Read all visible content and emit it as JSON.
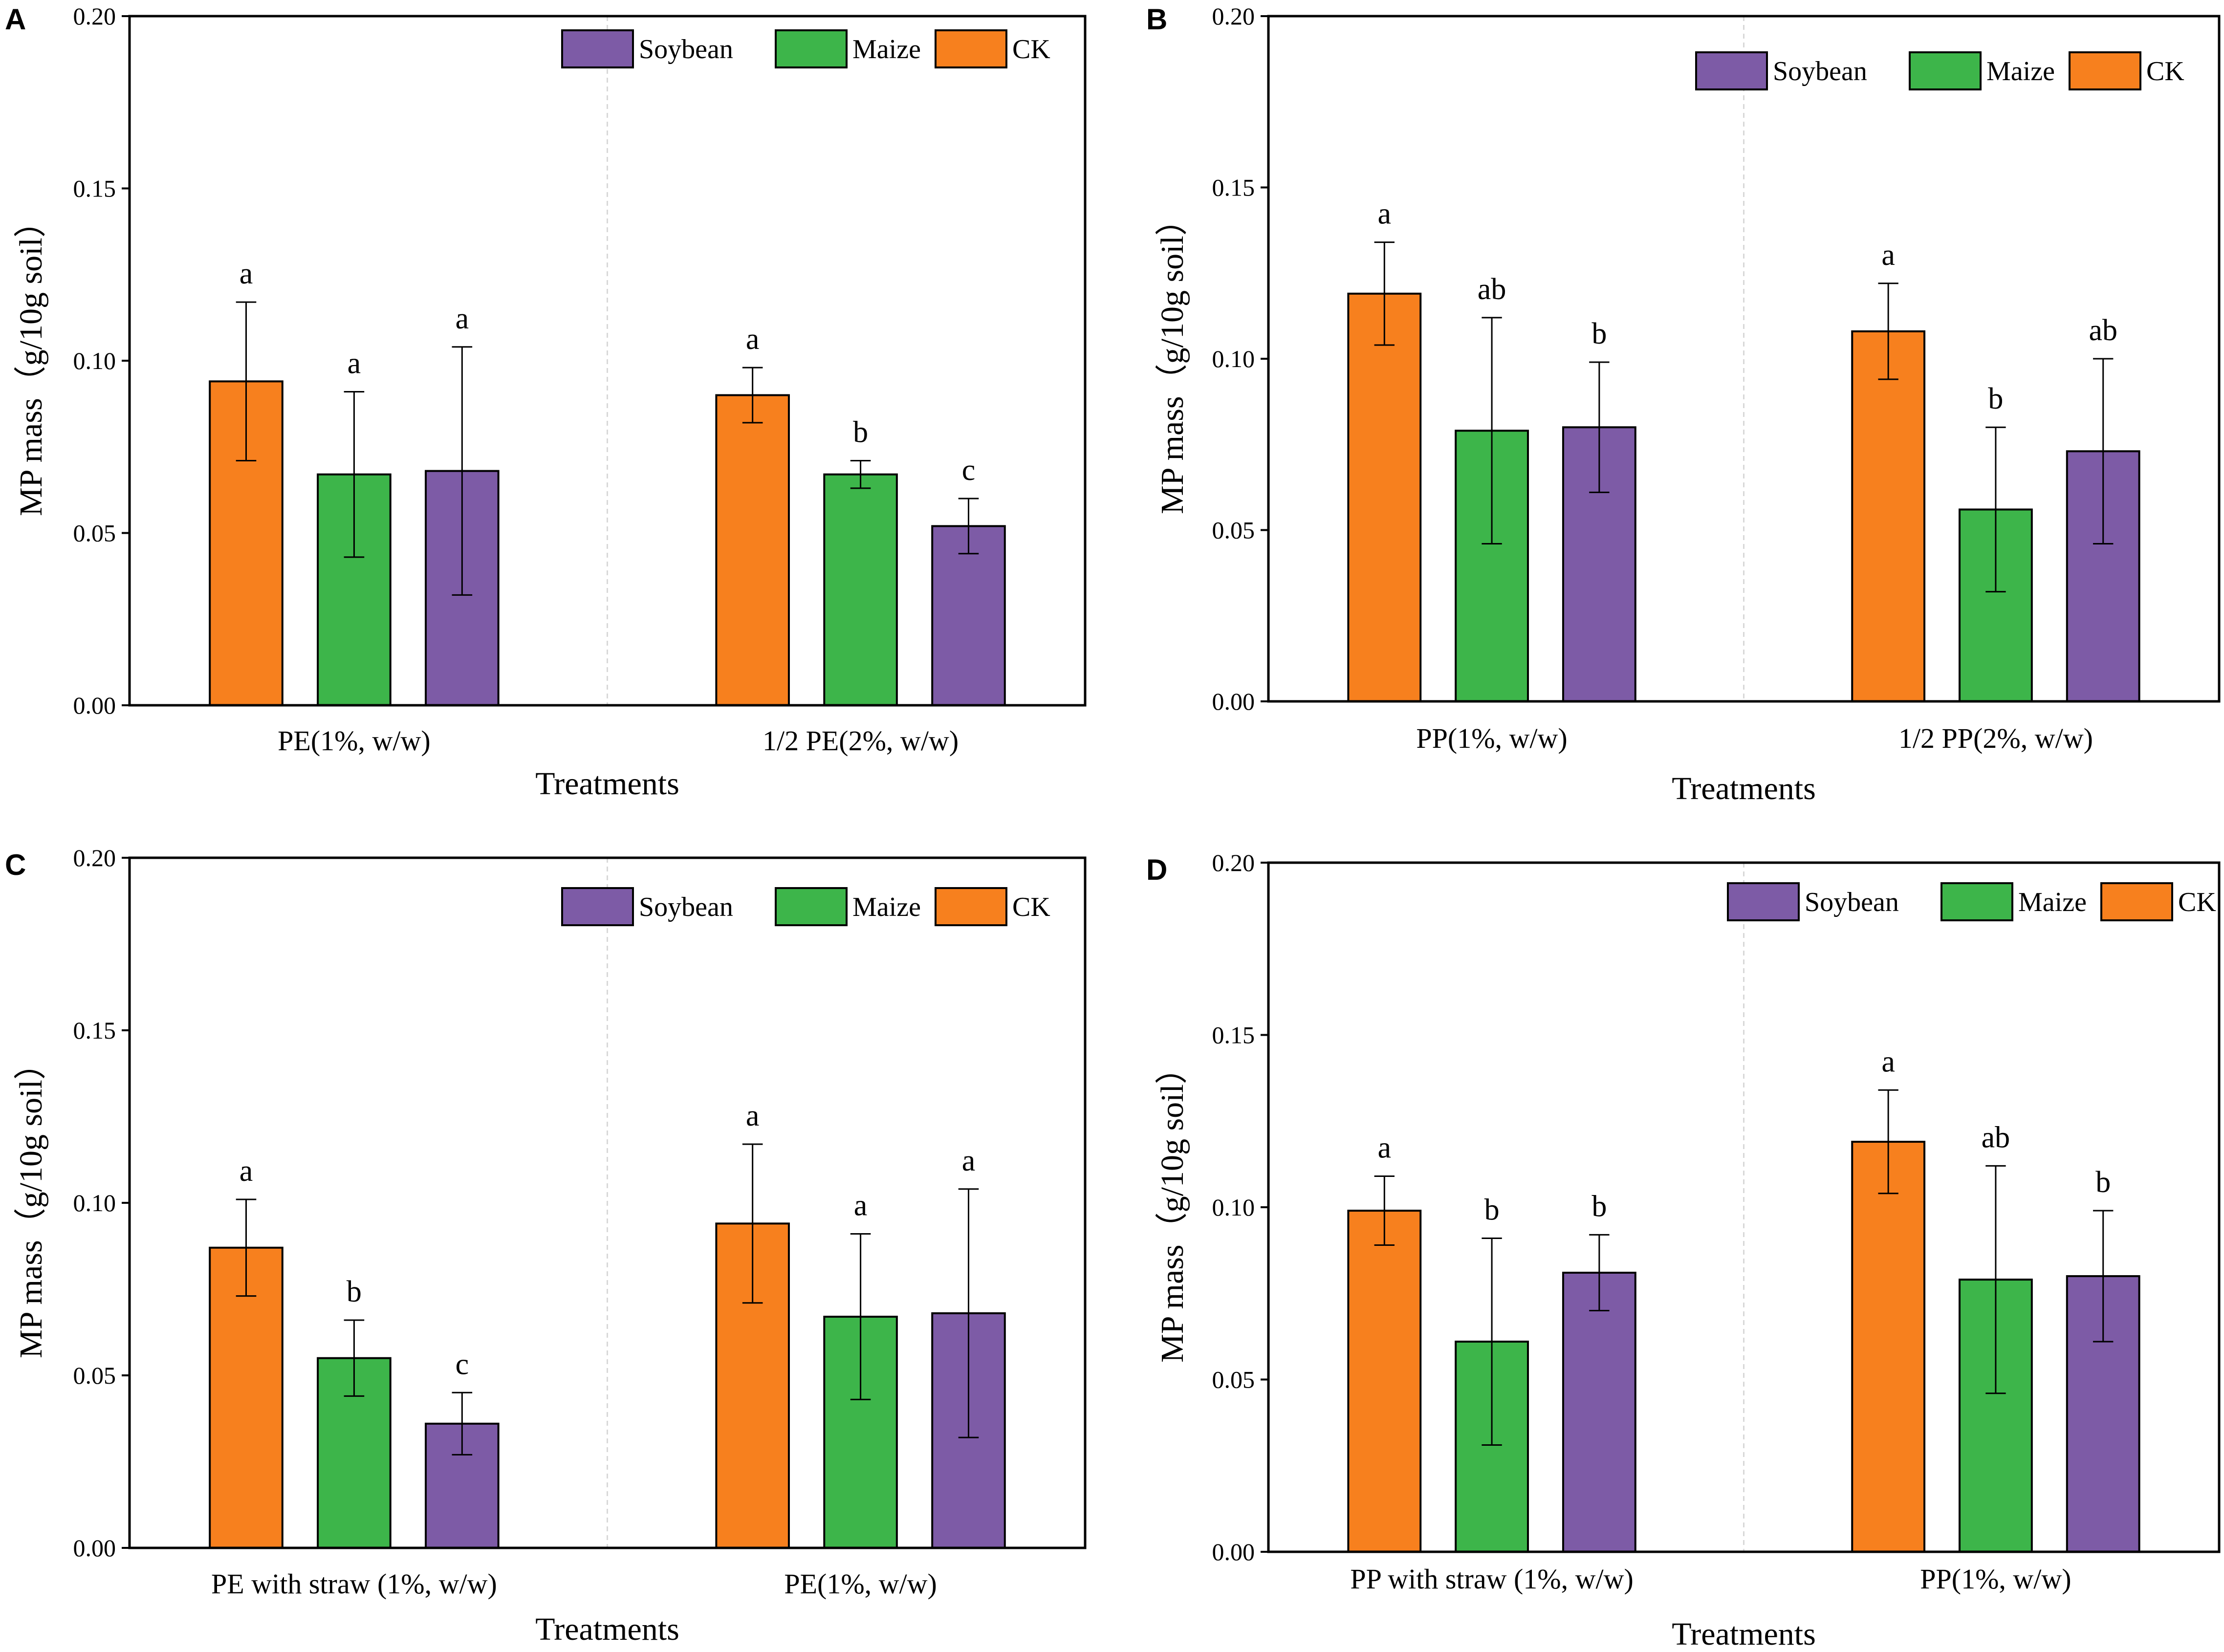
{
  "colors": {
    "CK": "#F7801E",
    "Maize": "#3DB54A",
    "Soybean": "#7D5BA6",
    "axis": "#000000",
    "divider": "#D8D8D8"
  },
  "chart_data": [
    {
      "panel": "A",
      "type": "bar",
      "xlabel": "Treatments",
      "ylabel": "MP mass（g/10g soil）",
      "ylim": [
        0,
        0.2
      ],
      "yticks": [
        "0.00",
        "0.05",
        "0.10",
        "0.15",
        "0.20"
      ],
      "legend": [
        "Soybean",
        "Maize",
        "CK"
      ],
      "categories": [
        "PE(1%, w/w)",
        "1/2 PE(2%, w/w)"
      ],
      "series": [
        {
          "name": "CK",
          "values": [
            0.094,
            0.09
          ],
          "errors": [
            0.023,
            0.008
          ],
          "letters": [
            "a",
            "a"
          ]
        },
        {
          "name": "Maize",
          "values": [
            0.067,
            0.067
          ],
          "errors": [
            0.024,
            0.004
          ],
          "letters": [
            "a",
            "b"
          ]
        },
        {
          "name": "Soybean",
          "values": [
            0.068,
            0.052
          ],
          "errors": [
            0.036,
            0.008
          ],
          "letters": [
            "a",
            "c"
          ]
        }
      ]
    },
    {
      "panel": "B",
      "type": "bar",
      "xlabel": "Treatments",
      "ylabel": "MP mass（g/10g soil）",
      "ylim": [
        0,
        0.2
      ],
      "yticks": [
        "0.00",
        "0.05",
        "0.10",
        "0.15",
        "0.20"
      ],
      "legend": [
        "Soybean",
        "Maize",
        "CK"
      ],
      "categories": [
        "PP(1%, w/w)",
        "1/2 PP(2%, w/w)"
      ],
      "series": [
        {
          "name": "CK",
          "values": [
            0.119,
            0.108
          ],
          "errors": [
            0.015,
            0.014
          ],
          "letters": [
            "a",
            "a"
          ]
        },
        {
          "name": "Maize",
          "values": [
            0.079,
            0.056
          ],
          "errors": [
            0.033,
            0.024
          ],
          "letters": [
            "ab",
            "b"
          ]
        },
        {
          "name": "Soybean",
          "values": [
            0.08,
            0.073
          ],
          "errors": [
            0.019,
            0.027
          ],
          "letters": [
            "b",
            "ab"
          ]
        }
      ]
    },
    {
      "panel": "C",
      "type": "bar",
      "xlabel": "Treatments",
      "ylabel": "MP mass（g/10g soil）",
      "ylim": [
        0,
        0.2
      ],
      "yticks": [
        "0.00",
        "0.05",
        "0.10",
        "0.15",
        "0.20"
      ],
      "legend": [
        "Soybean",
        "Maize",
        "CK"
      ],
      "categories": [
        "PE with straw (1%, w/w)",
        "PE(1%, w/w)"
      ],
      "series": [
        {
          "name": "CK",
          "values": [
            0.087,
            0.094
          ],
          "errors": [
            0.014,
            0.023
          ],
          "letters": [
            "a",
            "a"
          ]
        },
        {
          "name": "Maize",
          "values": [
            0.055,
            0.067
          ],
          "errors": [
            0.011,
            0.024
          ],
          "letters": [
            "b",
            "a"
          ]
        },
        {
          "name": "Soybean",
          "values": [
            0.036,
            0.068
          ],
          "errors": [
            0.009,
            0.036
          ],
          "letters": [
            "c",
            "a"
          ]
        }
      ]
    },
    {
      "panel": "D",
      "type": "bar",
      "xlabel": "Treatments",
      "ylabel": "MP mass（g/10g soil）",
      "ylim": [
        0,
        0.2
      ],
      "yticks": [
        "0.00",
        "0.05",
        "0.10",
        "0.15",
        "0.20"
      ],
      "legend": [
        "Soybean",
        "Maize",
        "CK"
      ],
      "categories": [
        "PP with straw (1%, w/w)",
        "PP(1%, w/w)"
      ],
      "series": [
        {
          "name": "CK",
          "values": [
            0.099,
            0.119
          ],
          "errors": [
            0.01,
            0.015
          ],
          "letters": [
            "a",
            "a"
          ]
        },
        {
          "name": "Maize",
          "values": [
            0.061,
            0.079
          ],
          "errors": [
            0.03,
            0.033
          ],
          "letters": [
            "b",
            "ab"
          ]
        },
        {
          "name": "Soybean",
          "values": [
            0.081,
            0.08
          ],
          "errors": [
            0.011,
            0.019
          ],
          "letters": [
            "b",
            "b"
          ]
        }
      ]
    }
  ]
}
